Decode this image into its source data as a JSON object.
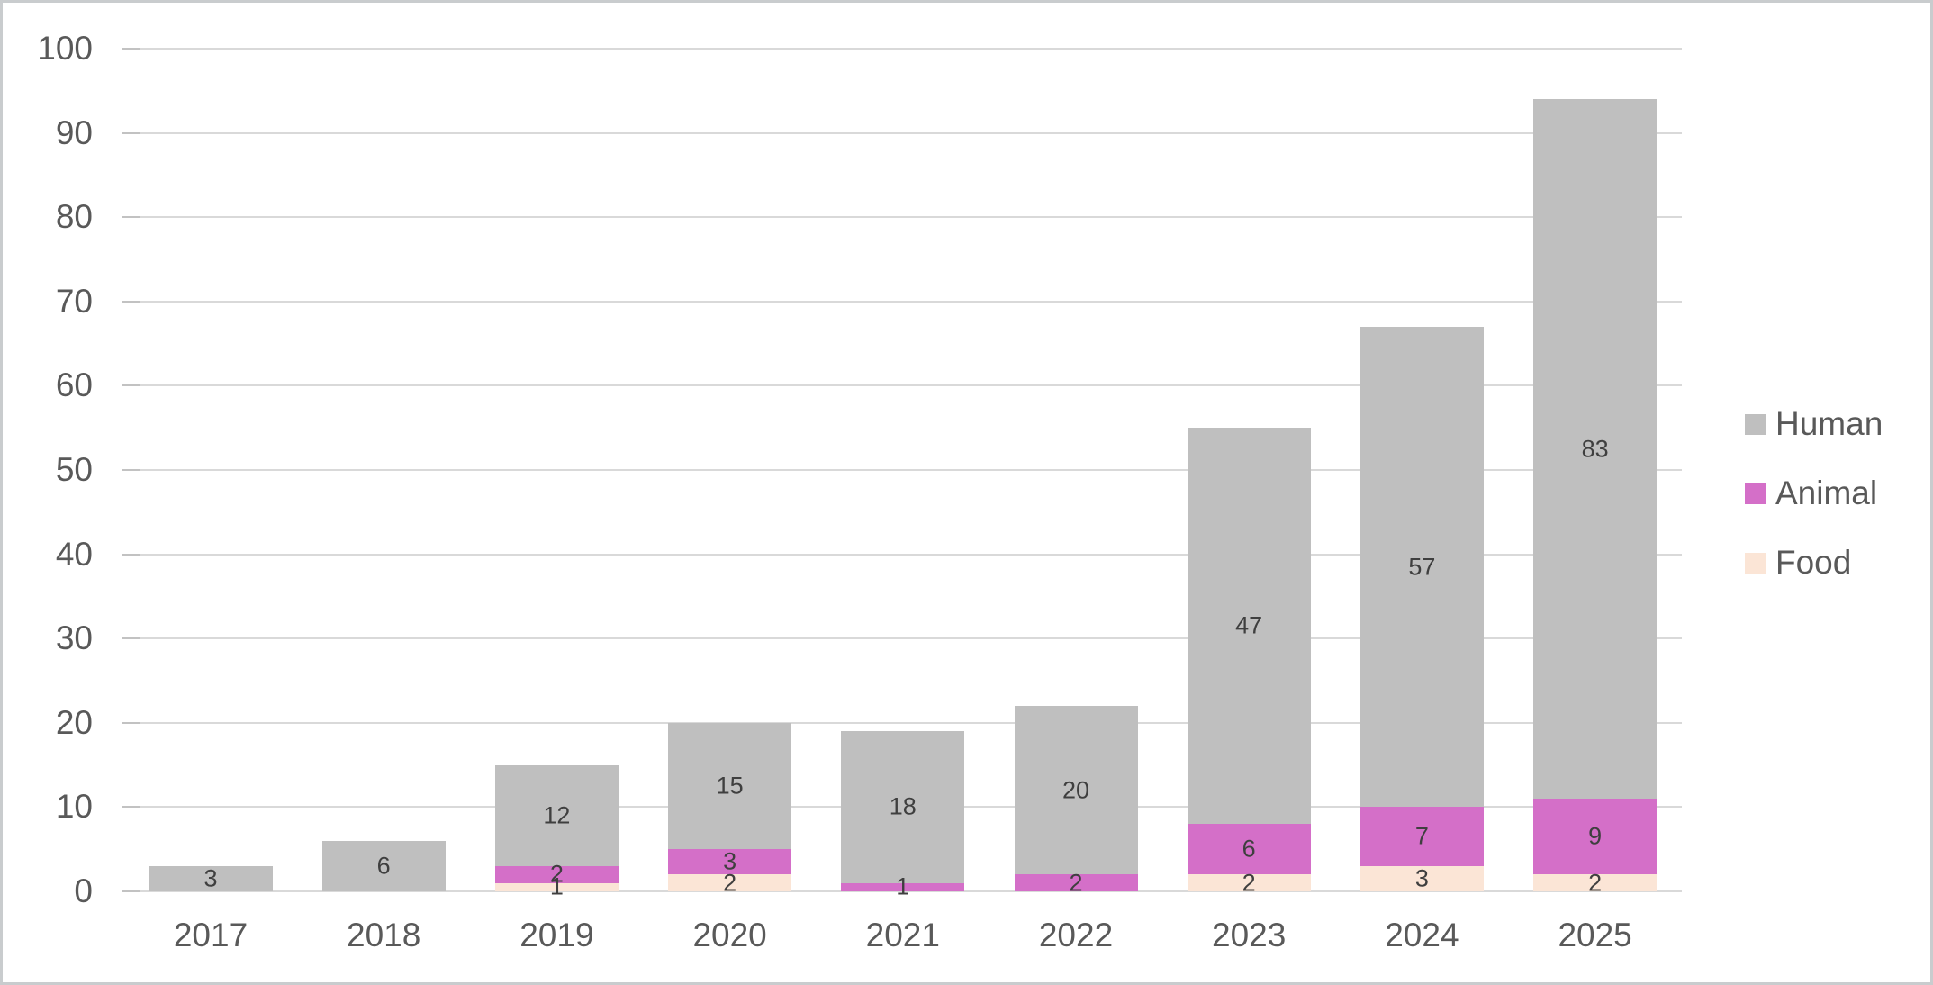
{
  "chart_data": {
    "type": "bar",
    "stacked": true,
    "categories": [
      "2017",
      "2018",
      "2019",
      "2020",
      "2021",
      "2022",
      "2023",
      "2024",
      "2025"
    ],
    "series": [
      {
        "name": "Human",
        "color": "#bfbfbf",
        "values": [
          3,
          6,
          12,
          15,
          18,
          20,
          47,
          57,
          83
        ]
      },
      {
        "name": "Animal",
        "color": "#d46fc8",
        "values": [
          0,
          0,
          2,
          3,
          1,
          2,
          6,
          7,
          9
        ]
      },
      {
        "name": "Food",
        "color": "#fbe5d6",
        "values": [
          0,
          0,
          1,
          2,
          0,
          0,
          2,
          3,
          2
        ]
      }
    ],
    "stack_order_bottom_to_top": [
      "Food",
      "Animal",
      "Human"
    ],
    "totals": [
      3,
      6,
      15,
      20,
      19,
      22,
      55,
      67,
      94
    ],
    "title": "",
    "xlabel": "",
    "ylabel": "",
    "ylim": [
      0,
      100
    ],
    "y_ticks": [
      0,
      10,
      20,
      30,
      40,
      50,
      60,
      70,
      80,
      90,
      100
    ],
    "grid": "horizontal",
    "gridline_color": "#d9d9d9",
    "axis_text_color": "#595959",
    "data_label_color": "#3f3f3f",
    "data_labels_shown": true,
    "legend": {
      "position": "right",
      "items": [
        {
          "label": "Human",
          "color": "#bfbfbf"
        },
        {
          "label": "Animal",
          "color": "#d46fc8"
        },
        {
          "label": "Food",
          "color": "#fbe5d6"
        }
      ]
    }
  }
}
